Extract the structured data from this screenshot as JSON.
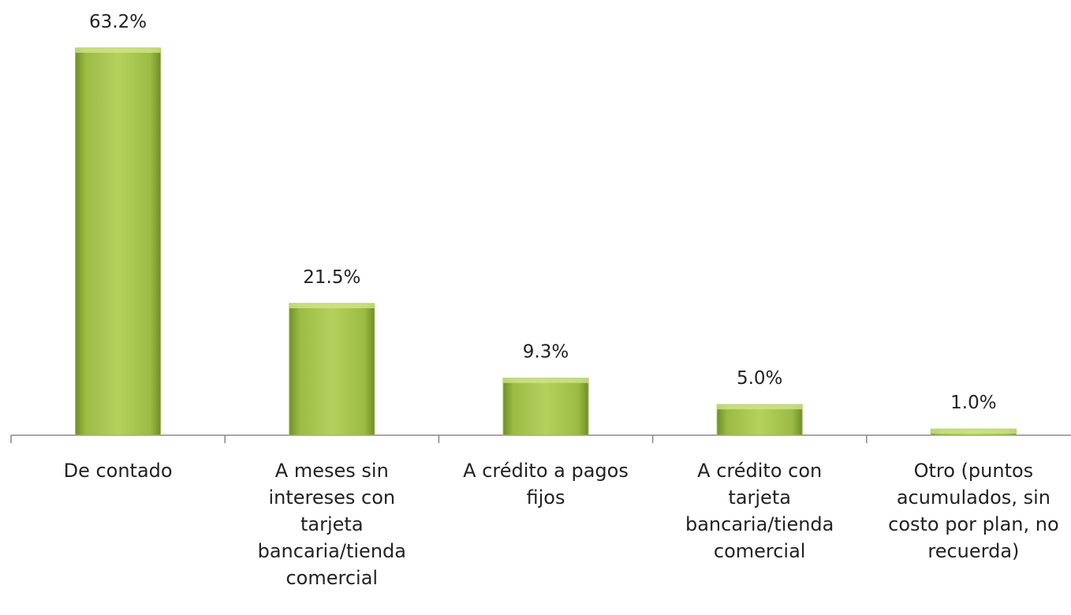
{
  "chart_data": {
    "type": "bar",
    "categories": [
      "De contado",
      "A meses sin intereses con tarjeta bancaria/tienda comercial",
      "A crédito a pagos fijos",
      "A crédito con tarjeta bancaria/tienda comercial",
      "Otro (puntos acumulados, sin costo por plan, no recuerda)"
    ],
    "values": [
      63.2,
      21.5,
      9.3,
      5.0,
      1.0
    ],
    "value_labels": [
      "63.2%",
      "21.5%",
      "9.3%",
      "5.0%",
      "1.0%"
    ],
    "color": "#9bbb59"
  }
}
